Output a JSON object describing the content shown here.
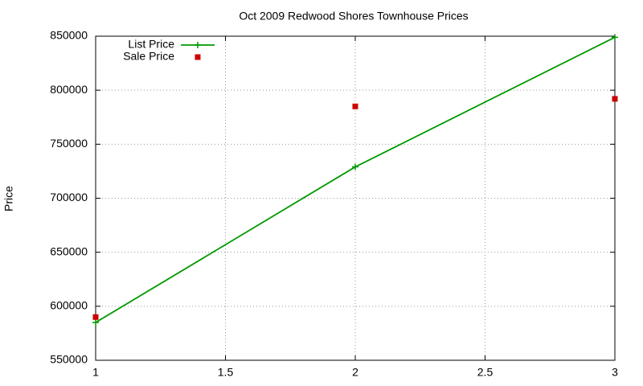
{
  "chart_data": {
    "type": "line",
    "title": "Oct 2009 Redwood Shores Townhouse Prices",
    "y_label": "Price",
    "x": [
      1,
      2,
      3
    ],
    "series": [
      {
        "name": "List Price",
        "color": "#009900",
        "style": "linespoints",
        "values": [
          585000,
          729000,
          849000
        ]
      },
      {
        "name": "Sale Price",
        "color": "#cc0000",
        "style": "points",
        "values": [
          590000,
          785000,
          792000
        ]
      }
    ],
    "xlim": [
      1,
      3
    ],
    "xticks": [
      1,
      1.5,
      2,
      2.5,
      3
    ],
    "ylim": [
      550000,
      850000
    ],
    "yticks": [
      550000,
      600000,
      650000,
      700000,
      750000,
      800000,
      850000
    ],
    "grid": true,
    "legend": "top-left"
  }
}
